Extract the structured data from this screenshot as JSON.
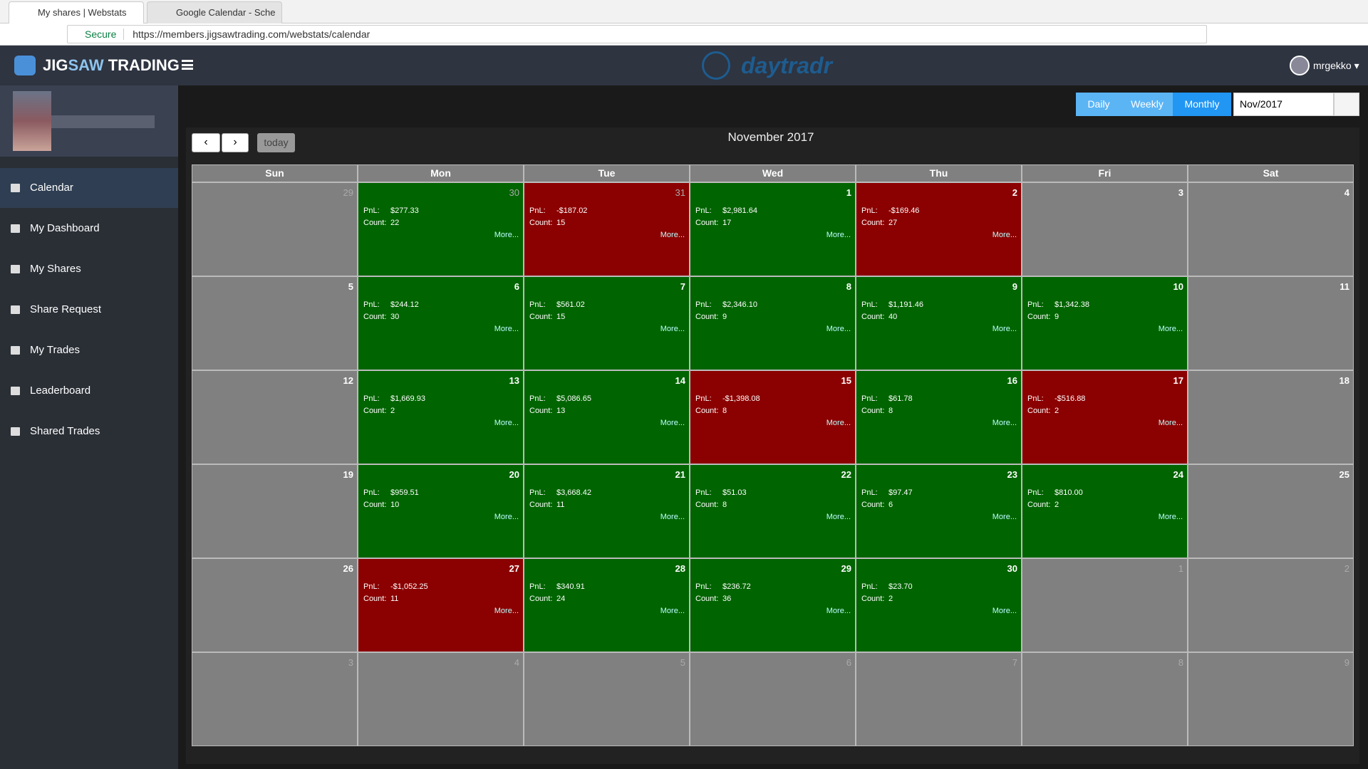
{
  "browser": {
    "tabs": [
      "My shares | Webstats",
      "Google Calendar - Sche"
    ],
    "secure": "Secure",
    "url": "https://members.jigsawtrading.com/webstats/calendar"
  },
  "header": {
    "brand": [
      "JIG",
      "SAW",
      " TRADING"
    ],
    "logo": "daytradr",
    "user": "mrgekko"
  },
  "sidebar": {
    "items": [
      "Calendar",
      "My Dashboard",
      "My Shares",
      "Share Request",
      "My Trades",
      "Leaderboard",
      "Shared Trades"
    ],
    "active": 0
  },
  "toolbar": {
    "views": [
      "Daily",
      "Weekly",
      "Monthly"
    ],
    "active_view": 2,
    "date": "Nov/2017",
    "today": "today"
  },
  "calendar": {
    "title": "November 2017",
    "weekdays": [
      "Sun",
      "Mon",
      "Tue",
      "Wed",
      "Thu",
      "Fri",
      "Sat"
    ],
    "labels": {
      "pnl": "PnL:",
      "count": "Count:",
      "more": "More..."
    },
    "weeks": [
      [
        {
          "day": 29,
          "other": true
        },
        {
          "day": 30,
          "other": true,
          "pnl": "$277.33",
          "count": 22
        },
        {
          "day": 31,
          "other": true,
          "pnl": "-$187.02",
          "count": 15
        },
        {
          "day": 1,
          "pnl": "$2,981.64",
          "count": 17
        },
        {
          "day": 2,
          "pnl": "-$169.46",
          "count": 27
        },
        {
          "day": 3
        },
        {
          "day": 4
        }
      ],
      [
        {
          "day": 5
        },
        {
          "day": 6,
          "pnl": "$244.12",
          "count": 30
        },
        {
          "day": 7,
          "pnl": "$561.02",
          "count": 15
        },
        {
          "day": 8,
          "pnl": "$2,346.10",
          "count": 9
        },
        {
          "day": 9,
          "pnl": "$1,191.46",
          "count": 40
        },
        {
          "day": 10,
          "pnl": "$1,342.38",
          "count": 9
        },
        {
          "day": 11
        }
      ],
      [
        {
          "day": 12
        },
        {
          "day": 13,
          "pnl": "$1,669.93",
          "count": 2
        },
        {
          "day": 14,
          "pnl": "$5,086.65",
          "count": 13
        },
        {
          "day": 15,
          "pnl": "-$1,398.08",
          "count": 8
        },
        {
          "day": 16,
          "pnl": "$61.78",
          "count": 8
        },
        {
          "day": 17,
          "pnl": "-$516.88",
          "count": 2
        },
        {
          "day": 18
        }
      ],
      [
        {
          "day": 19
        },
        {
          "day": 20,
          "pnl": "$959.51",
          "count": 10
        },
        {
          "day": 21,
          "pnl": "$3,668.42",
          "count": 11
        },
        {
          "day": 22,
          "pnl": "$51.03",
          "count": 8
        },
        {
          "day": 23,
          "pnl": "$97.47",
          "count": 6
        },
        {
          "day": 24,
          "pnl": "$810.00",
          "count": 2
        },
        {
          "day": 25
        }
      ],
      [
        {
          "day": 26
        },
        {
          "day": 27,
          "pnl": "-$1,052.25",
          "count": 11
        },
        {
          "day": 28,
          "pnl": "$340.91",
          "count": 24
        },
        {
          "day": 29,
          "pnl": "$236.72",
          "count": 36
        },
        {
          "day": 30,
          "pnl": "$23.70",
          "count": 2
        },
        {
          "day": 1,
          "other": true
        },
        {
          "day": 2,
          "other": true
        }
      ],
      [
        {
          "day": 3,
          "other": true
        },
        {
          "day": 4,
          "other": true
        },
        {
          "day": 5,
          "other": true
        },
        {
          "day": 6,
          "other": true
        },
        {
          "day": 7,
          "other": true
        },
        {
          "day": 8,
          "other": true
        },
        {
          "day": 9,
          "other": true
        }
      ]
    ]
  }
}
